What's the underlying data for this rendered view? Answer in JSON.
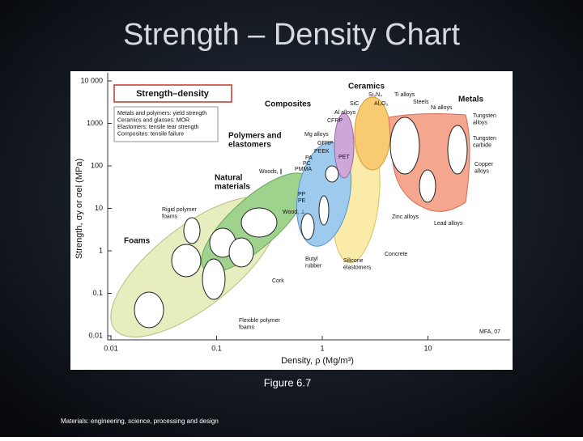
{
  "slide": {
    "title": "Strength – Density Chart",
    "caption": "Figure 6.7",
    "footer": "Materials: engineering, science, processing and design"
  },
  "chart": {
    "box_title": "Strength–density",
    "legend_lines": [
      "Metals and polymers: yield strength",
      "Ceramics and glasses: MOR",
      "Elastomers: tensile tear strength",
      "Composites: tensile failure"
    ],
    "families": [
      [
        "Ceramics"
      ],
      [
        "Metals"
      ],
      [
        "Composites"
      ],
      [
        "Polymers and",
        "elastomers"
      ],
      [
        "Natural",
        "materials"
      ],
      [
        "Foams"
      ]
    ],
    "materials": [
      [
        "Si₃N₄"
      ],
      [
        "Ti alloys"
      ],
      [
        "Steels"
      ],
      [
        "Ni alloys"
      ],
      [
        "SiC"
      ],
      [
        "Al₂O₃"
      ],
      [
        "Al alloys"
      ],
      [
        "CFRP"
      ],
      [
        "Tungsten",
        "alloys"
      ],
      [
        "Mg alloys"
      ],
      [
        "GFRP"
      ],
      [
        "PEEK"
      ],
      [
        "PET"
      ],
      [
        "PA"
      ],
      [
        "PC"
      ],
      [
        "PMMA"
      ],
      [
        "Tungsten",
        "carbide"
      ],
      [
        "Woods, ∥"
      ],
      [
        "Copper",
        "alloys"
      ],
      [
        "PP"
      ],
      [
        "PE"
      ],
      [
        "Wood, ⊥"
      ],
      [
        "Rigid polymer",
        "foams"
      ],
      [
        "Zinc alloys"
      ],
      [
        "Lead alloys"
      ],
      [
        "Concrete"
      ],
      [
        "Butyl",
        "rubber"
      ],
      [
        "Silicone",
        "elastomers"
      ],
      [
        "Cork"
      ],
      [
        "Flexible polymer",
        "foams"
      ],
      [
        "MFA, 07"
      ]
    ],
    "yticks": [
      "10 000",
      "1000",
      "100",
      "10",
      "1",
      "0.1",
      "0.01"
    ],
    "xticks": [
      "0.01",
      "0.1",
      "1",
      "10"
    ],
    "ylabel": "Strength, σy or σel (MPa)",
    "xlabel": "Density, ρ (Mg/m³)"
  }
}
